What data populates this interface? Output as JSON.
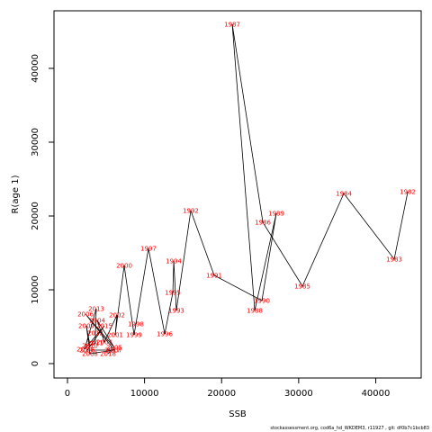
{
  "chart_data": {
    "type": "line",
    "x_label": "SSB",
    "y_label": "R(age 1)",
    "footer": "stockassessment.org, cod6a_hd_WKDEM3, r11927 , git: df0b7c1bcb83",
    "labels": [
      "1982",
      "1983",
      "1984",
      "1985",
      "1986",
      "1987",
      "1988",
      "1989",
      "1990",
      "1991",
      "1992",
      "1993",
      "1994",
      "1995",
      "1996",
      "1997",
      "1998",
      "1999",
      "2000",
      "2001",
      "2002",
      "2003",
      "2004",
      "2005",
      "2006",
      "2007",
      "2008",
      "2009",
      "2010",
      "2011",
      "2012",
      "2013",
      "2014",
      "2015",
      "2016",
      "2017",
      "2018"
    ],
    "x": [
      44160,
      42400,
      35860,
      30490,
      25350,
      21380,
      24300,
      27100,
      25230,
      19040,
      16000,
      14130,
      13790,
      13670,
      12620,
      10510,
      8880,
      8640,
      7360,
      6190,
      6430,
      4790,
      3860,
      6070,
      2340,
      6070,
      2920,
      2450,
      2920,
      3620,
      3620,
      3740,
      2220,
      4790,
      2570,
      5840,
      5260
    ],
    "values": [
      23290,
      14150,
      23050,
      10490,
      19150,
      45980,
      7200,
      20370,
      8540,
      11950,
      20730,
      7200,
      13900,
      9630,
      4020,
      15610,
      5370,
      3900,
      13290,
      3900,
      6590,
      2930,
      5850,
      2200,
      6710,
      1830,
      1340,
      5120,
      2440,
      2800,
      4150,
      7440,
      1950,
      5120,
      1830,
      1830,
      1340
    ],
    "line_color": "#000000",
    "label_color": "#ff0000",
    "xlim": [
      -1750,
      45900
    ],
    "ylim": [
      -1950,
      47800
    ],
    "xticks": [
      0,
      10000,
      20000,
      30000,
      40000
    ],
    "yticks": [
      0,
      10000,
      20000,
      30000,
      40000
    ],
    "grid": false
  }
}
